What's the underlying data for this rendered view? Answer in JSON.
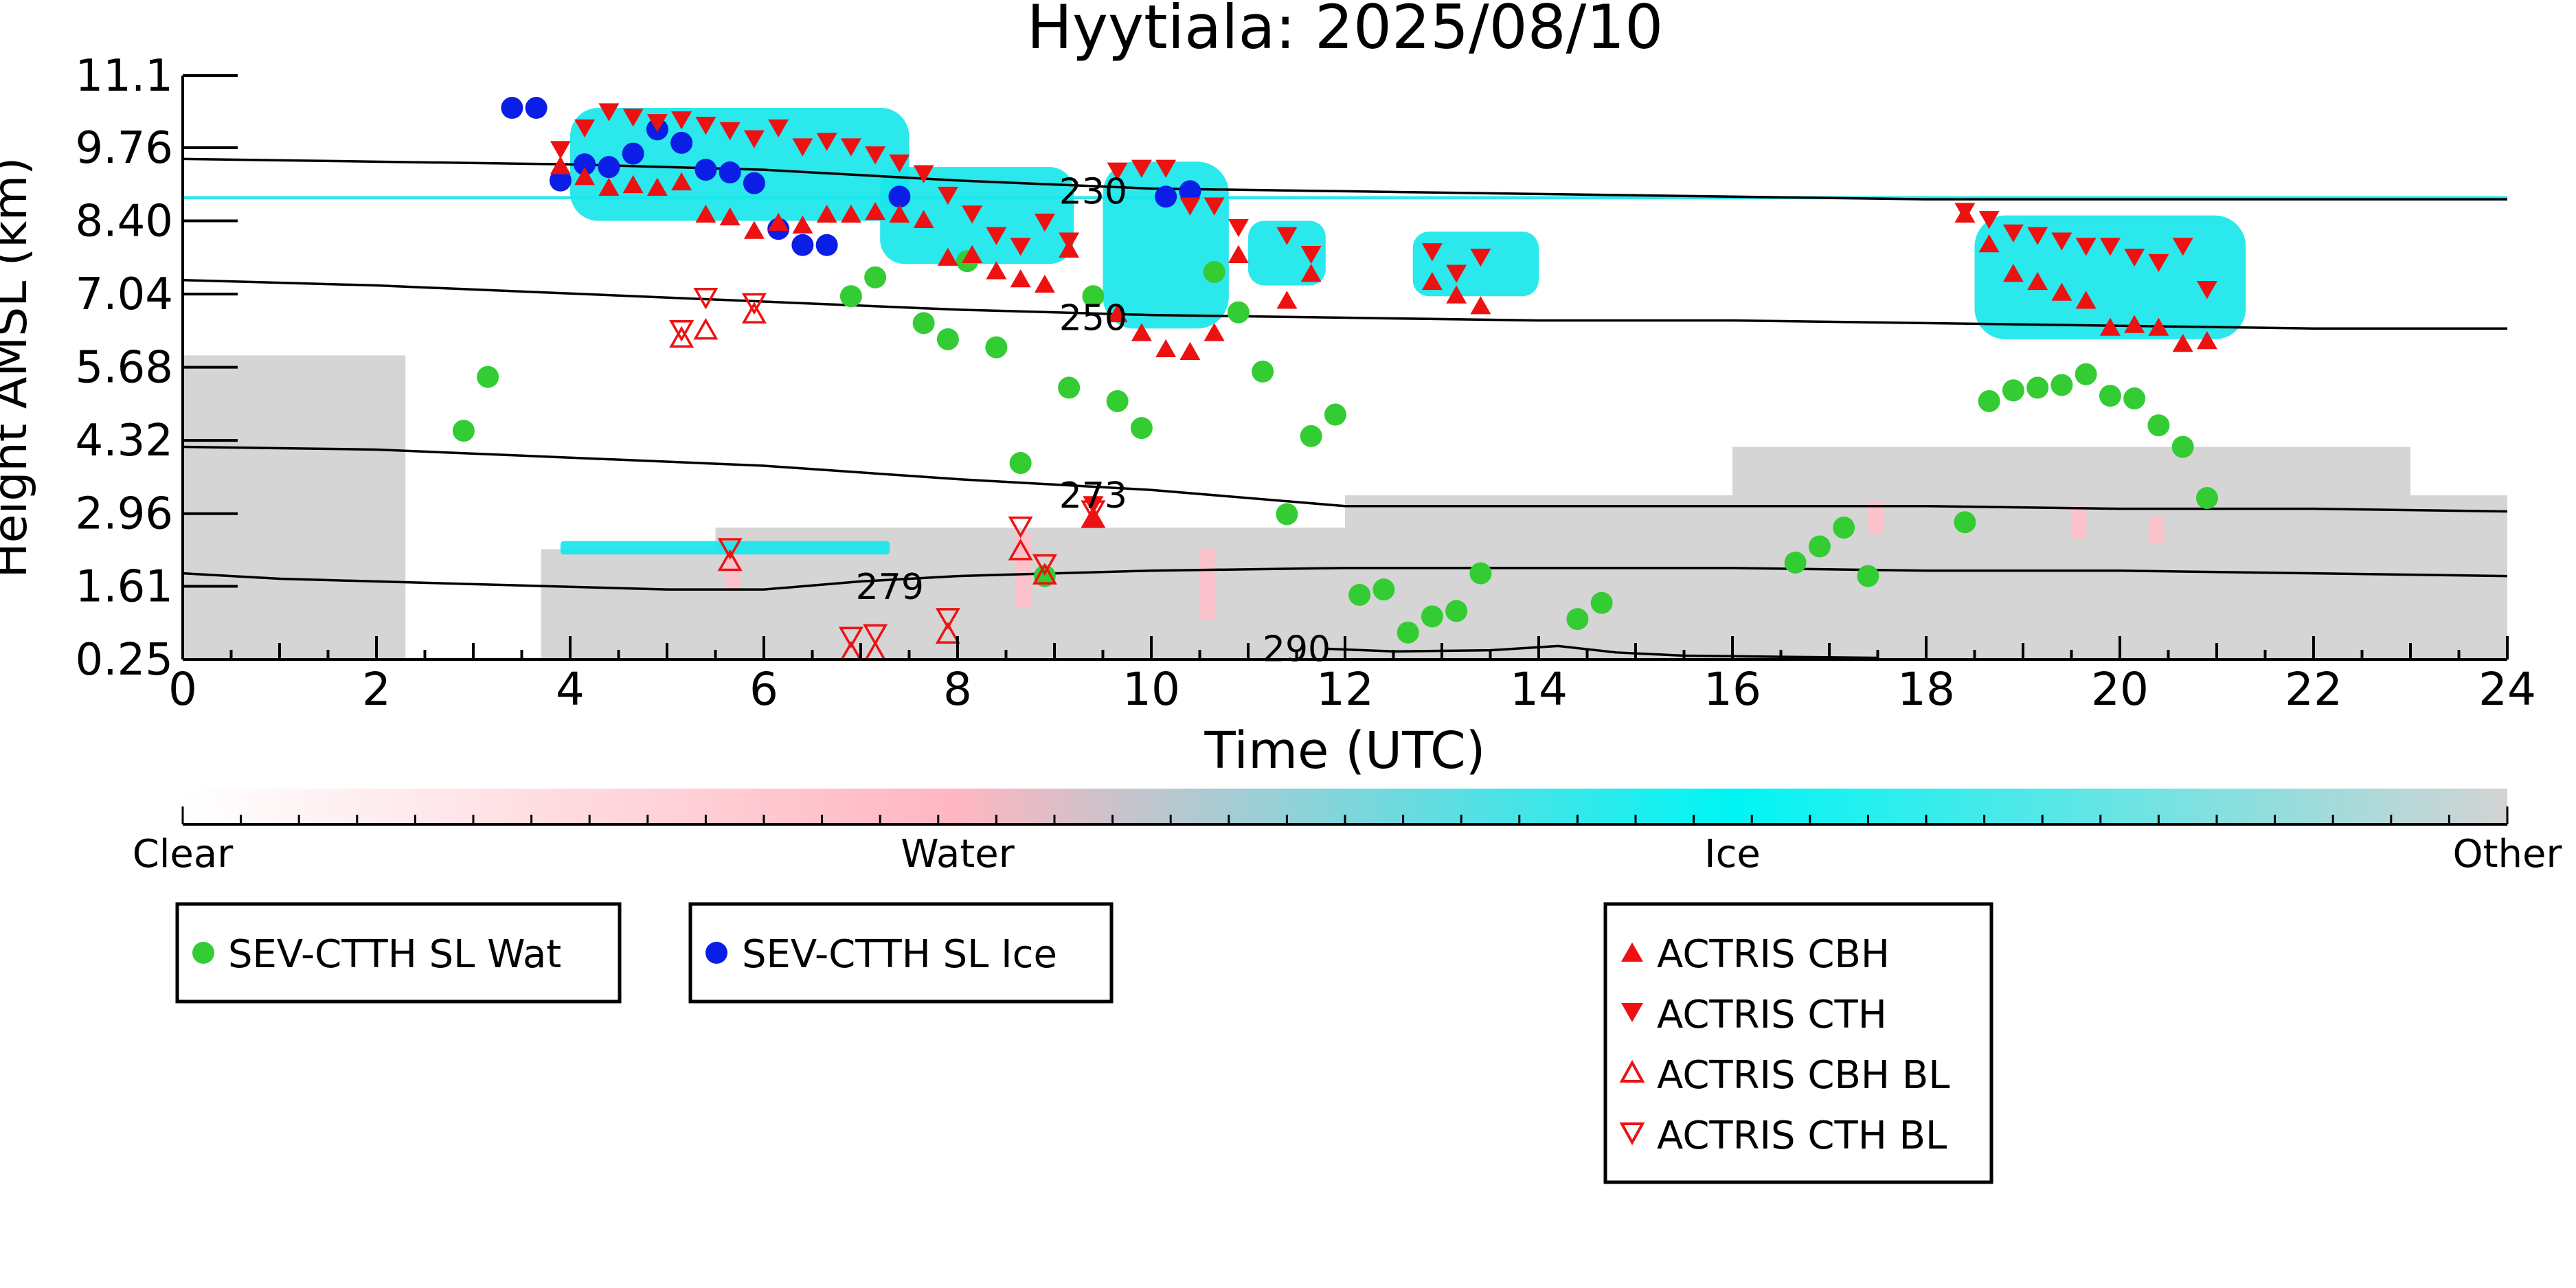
{
  "chart_data": {
    "type": "scatter",
    "title": "Hyytiala: 2025/08/10",
    "xlabel": "Time (UTC)",
    "ylabel": "Height AMSL (km)",
    "xlim": [
      0,
      24
    ],
    "ylim": [
      0.25,
      11.1
    ],
    "x_ticks": [
      0,
      2,
      4,
      6,
      8,
      10,
      12,
      14,
      16,
      18,
      20,
      22,
      24
    ],
    "y_ticks": [
      "0.25",
      "1.61",
      "2.96",
      "4.32",
      "5.68",
      "7.04",
      "8.40",
      "9.76",
      "11.1"
    ],
    "colorbar": {
      "labels": [
        "Clear",
        "Water",
        "Ice",
        "Other"
      ],
      "colors": [
        "#ffffff",
        "#ffb6c1",
        "#00ffff",
        "#d3d3d3"
      ]
    },
    "background_field": {
      "description_colors": {
        "ice": "#19e6ea",
        "other": "#d3d3d3",
        "water": "#ffc0cb"
      },
      "ice_regions": [
        {
          "x": [
            4.0,
            7.5
          ],
          "y": [
            8.4,
            10.5
          ]
        },
        {
          "x": [
            7.2,
            9.2
          ],
          "y": [
            7.6,
            9.4
          ]
        },
        {
          "x": [
            9.5,
            10.8
          ],
          "y": [
            6.4,
            9.5
          ]
        },
        {
          "x": [
            11.0,
            11.8
          ],
          "y": [
            7.2,
            8.4
          ]
        },
        {
          "x": [
            12.7,
            14.0
          ],
          "y": [
            7.0,
            8.2
          ]
        },
        {
          "x": [
            18.5,
            21.3
          ],
          "y": [
            6.2,
            8.5
          ]
        },
        {
          "x": [
            0.0,
            24.0
          ],
          "y": [
            8.8,
            8.86
          ]
        },
        {
          "x": [
            3.9,
            7.3
          ],
          "y": [
            2.2,
            2.45
          ]
        }
      ],
      "other_regions": [
        {
          "x": [
            0.0,
            2.3
          ],
          "y": [
            0.25,
            5.9
          ]
        },
        {
          "x": [
            3.7,
            5.5
          ],
          "y": [
            0.25,
            2.3
          ]
        },
        {
          "x": [
            5.5,
            12.0
          ],
          "y": [
            0.25,
            2.7
          ]
        },
        {
          "x": [
            12.0,
            24.0
          ],
          "y": [
            0.25,
            3.3
          ]
        },
        {
          "x": [
            16.0,
            23.0
          ],
          "y": [
            3.3,
            4.2
          ]
        }
      ]
    },
    "contours": [
      {
        "label": "230",
        "label_x": 9.4,
        "label_y": 8.95,
        "x": [
          0,
          2,
          4,
          6,
          8,
          10,
          12,
          14,
          16,
          18,
          20,
          22,
          24
        ],
        "y": [
          9.55,
          9.5,
          9.45,
          9.35,
          9.15,
          9.0,
          8.95,
          8.9,
          8.85,
          8.8,
          8.8,
          8.8,
          8.8
        ]
      },
      {
        "label": "250",
        "label_x": 9.4,
        "label_y": 6.6,
        "x": [
          0,
          2,
          4,
          6,
          8,
          10,
          12,
          14,
          16,
          18,
          20,
          22,
          24
        ],
        "y": [
          7.3,
          7.2,
          7.05,
          6.9,
          6.75,
          6.65,
          6.6,
          6.55,
          6.55,
          6.5,
          6.45,
          6.4,
          6.4
        ]
      },
      {
        "label": "273",
        "label_x": 9.4,
        "label_y": 3.3,
        "x": [
          0,
          2,
          4,
          6,
          8,
          10,
          12,
          14,
          16,
          18,
          20,
          22,
          24
        ],
        "y": [
          4.2,
          4.15,
          4.0,
          3.85,
          3.6,
          3.4,
          3.1,
          3.1,
          3.1,
          3.1,
          3.05,
          3.05,
          3.0
        ]
      },
      {
        "label": "279",
        "label_x": 7.3,
        "label_y": 1.6,
        "x": [
          0,
          1,
          2,
          3,
          4,
          5,
          6,
          7,
          8,
          10,
          12,
          14,
          16,
          18,
          20,
          22,
          24
        ],
        "y": [
          1.85,
          1.75,
          1.7,
          1.65,
          1.6,
          1.55,
          1.55,
          1.7,
          1.8,
          1.9,
          1.95,
          1.95,
          1.95,
          1.9,
          1.9,
          1.85,
          1.8
        ]
      },
      {
        "label": "290",
        "label_x": 11.5,
        "label_y": 0.45,
        "x": [
          11.8,
          12.5,
          13.5,
          14.2,
          14.8,
          15.5,
          16.5,
          17.5
        ],
        "y": [
          0.45,
          0.4,
          0.42,
          0.5,
          0.38,
          0.32,
          0.3,
          0.28
        ]
      }
    ],
    "series": [
      {
        "name": "SEV-CTTH SL Wat",
        "marker": "circle",
        "color": "#33cc33",
        "points": [
          [
            2.9,
            4.5
          ],
          [
            3.15,
            5.5
          ],
          [
            6.9,
            7.0
          ],
          [
            7.15,
            7.35
          ],
          [
            7.65,
            6.5
          ],
          [
            7.9,
            6.2
          ],
          [
            8.1,
            7.65
          ],
          [
            8.4,
            6.05
          ],
          [
            8.65,
            3.9
          ],
          [
            8.9,
            1.8
          ],
          [
            9.15,
            5.3
          ],
          [
            9.4,
            7.0
          ],
          [
            9.65,
            5.05
          ],
          [
            9.9,
            4.55
          ],
          [
            10.65,
            7.45
          ],
          [
            10.9,
            6.7
          ],
          [
            11.15,
            5.6
          ],
          [
            11.4,
            2.95
          ],
          [
            11.65,
            4.4
          ],
          [
            11.9,
            4.8
          ],
          [
            12.15,
            1.45
          ],
          [
            12.4,
            1.55
          ],
          [
            12.65,
            0.75
          ],
          [
            12.9,
            1.05
          ],
          [
            13.15,
            1.15
          ],
          [
            13.4,
            1.85
          ],
          [
            14.4,
            1.0
          ],
          [
            14.65,
            1.3
          ],
          [
            16.65,
            2.05
          ],
          [
            16.9,
            2.35
          ],
          [
            17.15,
            2.7
          ],
          [
            17.4,
            1.8
          ],
          [
            18.4,
            2.8
          ],
          [
            18.65,
            5.05
          ],
          [
            18.9,
            5.25
          ],
          [
            19.15,
            5.3
          ],
          [
            19.4,
            5.35
          ],
          [
            19.65,
            5.55
          ],
          [
            19.9,
            5.15
          ],
          [
            20.15,
            5.1
          ],
          [
            20.4,
            4.6
          ],
          [
            20.65,
            4.2
          ],
          [
            20.9,
            3.25
          ]
        ]
      },
      {
        "name": "SEV-CTTH SL Ice",
        "marker": "circle",
        "color": "#0a1ee6",
        "points": [
          [
            3.4,
            10.5
          ],
          [
            3.65,
            10.5
          ],
          [
            3.9,
            9.15
          ],
          [
            4.15,
            9.45
          ],
          [
            4.4,
            9.4
          ],
          [
            4.65,
            9.65
          ],
          [
            4.9,
            10.1
          ],
          [
            5.15,
            9.85
          ],
          [
            5.4,
            9.35
          ],
          [
            5.65,
            9.3
          ],
          [
            5.9,
            9.1
          ],
          [
            6.15,
            8.25
          ],
          [
            6.4,
            7.95
          ],
          [
            6.65,
            7.95
          ],
          [
            7.4,
            8.85
          ],
          [
            10.15,
            8.85
          ],
          [
            10.4,
            8.95
          ]
        ]
      },
      {
        "name": "ACTRIS CBH",
        "marker": "triangle-up",
        "color": "#ee1111",
        "filled": true,
        "points": [
          [
            3.9,
            9.4
          ],
          [
            4.15,
            9.2
          ],
          [
            4.4,
            9.0
          ],
          [
            4.65,
            9.05
          ],
          [
            4.9,
            9.0
          ],
          [
            5.15,
            9.1
          ],
          [
            5.4,
            8.5
          ],
          [
            5.65,
            8.45
          ],
          [
            5.9,
            8.2
          ],
          [
            6.15,
            8.35
          ],
          [
            6.4,
            8.3
          ],
          [
            6.65,
            8.5
          ],
          [
            6.9,
            8.5
          ],
          [
            7.15,
            8.55
          ],
          [
            7.4,
            8.5
          ],
          [
            7.65,
            8.4
          ],
          [
            7.9,
            7.7
          ],
          [
            8.15,
            7.75
          ],
          [
            8.4,
            7.45
          ],
          [
            8.65,
            7.3
          ],
          [
            8.9,
            7.2
          ],
          [
            9.15,
            7.85
          ],
          [
            9.4,
            2.85
          ],
          [
            9.65,
            6.65
          ],
          [
            9.9,
            6.3
          ],
          [
            10.15,
            6.0
          ],
          [
            10.4,
            5.95
          ],
          [
            10.65,
            6.3
          ],
          [
            10.9,
            7.75
          ],
          [
            11.4,
            6.9
          ],
          [
            11.65,
            7.4
          ],
          [
            12.9,
            7.25
          ],
          [
            13.15,
            7.0
          ],
          [
            13.4,
            6.8
          ],
          [
            18.4,
            8.5
          ],
          [
            18.65,
            7.95
          ],
          [
            18.9,
            7.4
          ],
          [
            19.15,
            7.25
          ],
          [
            19.4,
            7.05
          ],
          [
            19.65,
            6.9
          ],
          [
            19.9,
            6.4
          ],
          [
            20.15,
            6.45
          ],
          [
            20.4,
            6.4
          ],
          [
            20.65,
            6.1
          ],
          [
            20.9,
            6.15
          ]
        ]
      },
      {
        "name": "ACTRIS CTH",
        "marker": "triangle-down",
        "color": "#ee1111",
        "filled": true,
        "points": [
          [
            3.9,
            9.75
          ],
          [
            4.15,
            10.15
          ],
          [
            4.4,
            10.45
          ],
          [
            4.65,
            10.35
          ],
          [
            4.9,
            10.25
          ],
          [
            5.15,
            10.3
          ],
          [
            5.4,
            10.2
          ],
          [
            5.65,
            10.1
          ],
          [
            5.9,
            9.95
          ],
          [
            6.15,
            10.15
          ],
          [
            6.4,
            9.8
          ],
          [
            6.65,
            9.9
          ],
          [
            6.9,
            9.8
          ],
          [
            7.15,
            9.65
          ],
          [
            7.4,
            9.5
          ],
          [
            7.65,
            9.3
          ],
          [
            7.9,
            8.9
          ],
          [
            8.15,
            8.55
          ],
          [
            8.4,
            8.15
          ],
          [
            8.65,
            7.95
          ],
          [
            8.9,
            8.4
          ],
          [
            9.15,
            8.05
          ],
          [
            9.4,
            3.15
          ],
          [
            9.65,
            9.35
          ],
          [
            9.9,
            9.4
          ],
          [
            10.15,
            9.4
          ],
          [
            10.4,
            8.7
          ],
          [
            10.65,
            8.7
          ],
          [
            10.9,
            8.3
          ],
          [
            11.4,
            8.15
          ],
          [
            11.65,
            7.8
          ],
          [
            12.9,
            7.85
          ],
          [
            13.15,
            7.45
          ],
          [
            13.4,
            7.75
          ],
          [
            18.4,
            8.6
          ],
          [
            18.65,
            8.45
          ],
          [
            18.9,
            8.2
          ],
          [
            19.15,
            8.15
          ],
          [
            19.4,
            8.05
          ],
          [
            19.65,
            7.95
          ],
          [
            19.9,
            7.95
          ],
          [
            20.15,
            7.75
          ],
          [
            20.4,
            7.65
          ],
          [
            20.65,
            7.95
          ],
          [
            20.9,
            7.15
          ]
        ]
      },
      {
        "name": "ACTRIS CBH BL",
        "marker": "triangle-up",
        "color": "#ee1111",
        "filled": false,
        "points": [
          [
            5.15,
            6.2
          ],
          [
            5.4,
            6.35
          ],
          [
            5.65,
            2.05
          ],
          [
            5.9,
            6.65
          ],
          [
            6.9,
            0.35
          ],
          [
            7.15,
            0.35
          ],
          [
            7.9,
            0.7
          ],
          [
            8.65,
            2.25
          ],
          [
            8.9,
            1.8
          ],
          [
            9.4,
            2.85
          ]
        ]
      },
      {
        "name": "ACTRIS CTH BL",
        "marker": "triangle-down",
        "color": "#ee1111",
        "filled": false,
        "points": [
          [
            5.15,
            6.4
          ],
          [
            5.4,
            7.0
          ],
          [
            5.65,
            2.35
          ],
          [
            5.9,
            6.9
          ],
          [
            6.9,
            0.7
          ],
          [
            7.15,
            0.75
          ],
          [
            7.9,
            1.05
          ],
          [
            8.65,
            2.75
          ],
          [
            8.9,
            2.05
          ],
          [
            9.4,
            3.05
          ]
        ]
      }
    ],
    "legend_groups": [
      [
        "SEV-CTTH SL Wat"
      ],
      [
        "SEV-CTTH SL Ice"
      ],
      [
        "ACTRIS CBH",
        "ACTRIS CTH",
        "ACTRIS CBH BL",
        "ACTRIS CTH BL"
      ]
    ]
  }
}
